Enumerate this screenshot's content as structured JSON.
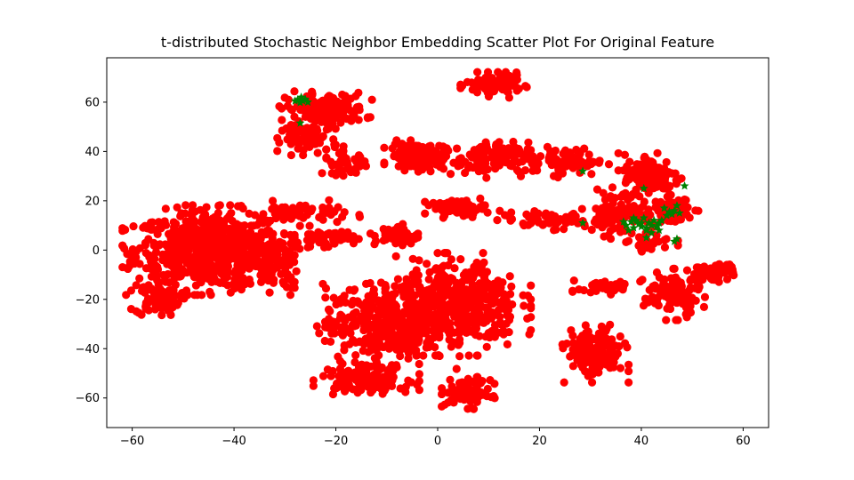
{
  "chart_data": {
    "type": "scatter",
    "title": "t-distributed Stochastic Neighbor Embedding Scatter Plot For Original Feature",
    "xlabel": "",
    "ylabel": "",
    "xlim": [
      -65,
      65
    ],
    "ylim": [
      -72,
      78
    ],
    "xticks": [
      -60,
      -40,
      -20,
      0,
      20,
      40,
      60
    ],
    "yticks": [
      -60,
      -40,
      -20,
      0,
      20,
      40,
      60
    ],
    "grid": false,
    "series": [
      {
        "marker": "circle",
        "color": "#ff0000",
        "clusters": [
          {
            "cx": -45,
            "cy": 0,
            "rx": 13,
            "ry": 14,
            "n": 700
          },
          {
            "cx": -55,
            "cy": -20,
            "rx": 4,
            "ry": 6,
            "n": 80
          },
          {
            "cx": -32,
            "cy": -5,
            "rx": 4,
            "ry": 10,
            "n": 80
          },
          {
            "cx": -22,
            "cy": 57,
            "rx": 7,
            "ry": 6,
            "n": 160
          },
          {
            "cx": -25,
            "cy": 45,
            "rx": 5,
            "ry": 5,
            "n": 70
          },
          {
            "cx": -18,
            "cy": 35,
            "rx": 4,
            "ry": 4,
            "n": 40
          },
          {
            "cx": -22,
            "cy": 5,
            "rx": 5,
            "ry": 3,
            "n": 60
          },
          {
            "cx": -27,
            "cy": 15,
            "rx": 9,
            "ry": 4,
            "n": 60
          },
          {
            "cx": 11,
            "cy": 67,
            "rx": 5,
            "ry": 4,
            "n": 110
          },
          {
            "cx": -4,
            "cy": 38,
            "rx": 5,
            "ry": 5,
            "n": 110
          },
          {
            "cx": 9,
            "cy": 37,
            "rx": 8,
            "ry": 6,
            "n": 120
          },
          {
            "cx": 25,
            "cy": 36,
            "rx": 7,
            "ry": 5,
            "n": 80
          },
          {
            "cx": 42,
            "cy": 30,
            "rx": 5,
            "ry": 8,
            "n": 140
          },
          {
            "cx": 36,
            "cy": 15,
            "rx": 6,
            "ry": 8,
            "n": 100
          },
          {
            "cx": 46,
            "cy": 16,
            "rx": 4,
            "ry": 5,
            "n": 50
          },
          {
            "cx": 4,
            "cy": 17,
            "rx": 5,
            "ry": 3,
            "n": 60
          },
          {
            "cx": -8,
            "cy": 6,
            "rx": 4,
            "ry": 4,
            "n": 50
          },
          {
            "cx": 22,
            "cy": 12,
            "rx": 9,
            "ry": 3,
            "n": 60
          },
          {
            "cx": -10,
            "cy": -30,
            "rx": 11,
            "ry": 14,
            "n": 380
          },
          {
            "cx": 4,
            "cy": -22,
            "rx": 11,
            "ry": 16,
            "n": 420
          },
          {
            "cx": -14,
            "cy": -52,
            "rx": 8,
            "ry": 5,
            "n": 140
          },
          {
            "cx": 6,
            "cy": -58,
            "rx": 4,
            "ry": 5,
            "n": 100
          },
          {
            "cx": 31,
            "cy": -42,
            "rx": 5,
            "ry": 9,
            "n": 160
          },
          {
            "cx": 33,
            "cy": -15,
            "rx": 5,
            "ry": 3,
            "n": 40
          },
          {
            "cx": 46,
            "cy": -18,
            "rx": 5,
            "ry": 8,
            "n": 110
          },
          {
            "cx": 54,
            "cy": -9,
            "rx": 4,
            "ry": 3,
            "n": 60
          },
          {
            "cx": 42,
            "cy": 3,
            "rx": 4,
            "ry": 3,
            "n": 30
          }
        ]
      },
      {
        "marker": "star",
        "color": "#008000",
        "points": [
          [
            -27.5,
            61
          ],
          [
            -26.5,
            60.5
          ],
          [
            -26,
            61.2
          ],
          [
            -27,
            59.8
          ],
          [
            -25.5,
            60
          ],
          [
            -28,
            60.5
          ],
          [
            -26.8,
            62
          ],
          [
            -27,
            51.5
          ],
          [
            40.5,
            25
          ],
          [
            48.5,
            26
          ],
          [
            28.5,
            32
          ],
          [
            28.5,
            11
          ],
          [
            37,
            10
          ],
          [
            37.5,
            8
          ],
          [
            38,
            11.5
          ],
          [
            38.5,
            9
          ],
          [
            39,
            12
          ],
          [
            39.5,
            10.5
          ],
          [
            40,
            11
          ],
          [
            40.5,
            13
          ],
          [
            41,
            9
          ],
          [
            41.5,
            11
          ],
          [
            42,
            10
          ],
          [
            42.5,
            12
          ],
          [
            43,
            9.5
          ],
          [
            43.5,
            11
          ],
          [
            41,
            8
          ],
          [
            42,
            7
          ],
          [
            38.5,
            13
          ],
          [
            36.5,
            11.5
          ],
          [
            40,
            9.5
          ],
          [
            44,
            12
          ],
          [
            43.5,
            8
          ],
          [
            41,
            5
          ],
          [
            44.5,
            17
          ],
          [
            45,
            14
          ],
          [
            45.5,
            15.5
          ],
          [
            46,
            14.5
          ],
          [
            46.5,
            16
          ],
          [
            47,
            18
          ],
          [
            47.5,
            15
          ],
          [
            46.5,
            3.5
          ],
          [
            47,
            4.5
          ]
        ]
      }
    ]
  }
}
